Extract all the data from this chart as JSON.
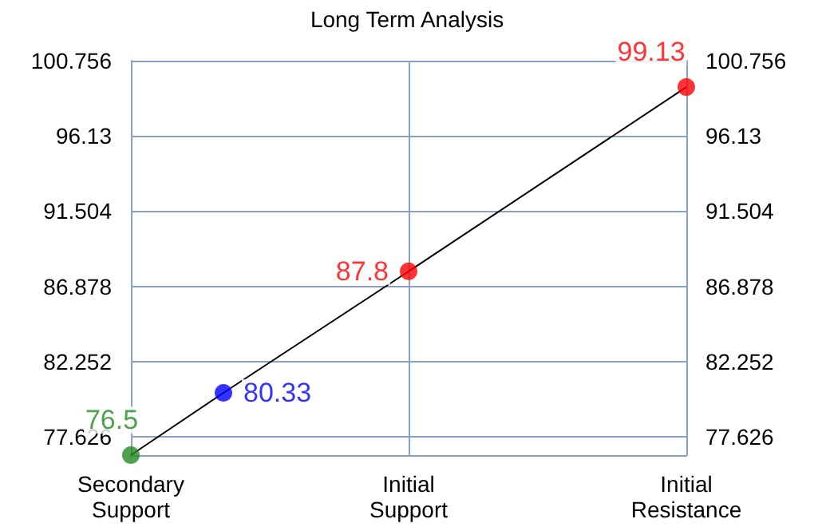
{
  "chart_data": {
    "type": "line",
    "title": "Long Term Analysis",
    "categories": [
      "Secondary\nSupport",
      null,
      null,
      "Initial\nSupport",
      null,
      null,
      "Initial\nResistance"
    ],
    "ylim": [
      76.5,
      100.756
    ],
    "yticks": [
      77.626,
      82.252,
      86.878,
      91.504,
      96.13,
      100.756
    ],
    "y2lim": [
      76.5,
      100.756
    ],
    "y2ticks": [
      77.626,
      82.252,
      86.878,
      91.504,
      96.13,
      100.756
    ],
    "grid": true,
    "series": [
      {
        "color": "#000000",
        "marker": "none",
        "values": [
          76.5,
          80.33,
          null,
          87.8,
          null,
          null,
          99.13
        ]
      },
      {
        "type": "scatter",
        "marker": "circle",
        "values": [
          76.5,
          80.33,
          null,
          87.8,
          null,
          null,
          99.13
        ],
        "colors": [
          "#228b22",
          "#0000ff",
          null,
          "#ff0000",
          null,
          null,
          "#ff0000"
        ],
        "value_labels": [
          "76.5",
          "80.33",
          null,
          "87.8",
          null,
          null,
          "99.13"
        ]
      }
    ]
  }
}
